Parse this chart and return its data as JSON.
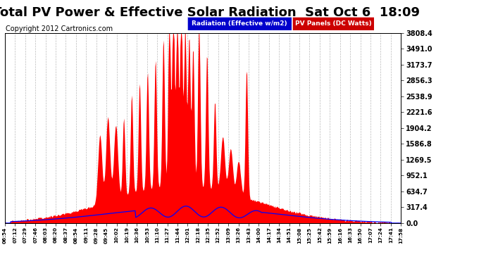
{
  "title": "Total PV Power & Effective Solar Radiation  Sat Oct 6  18:09",
  "copyright": "Copyright 2012 Cartronics.com",
  "yticks": [
    0.0,
    317.4,
    634.7,
    952.1,
    1269.5,
    1586.8,
    1904.2,
    2221.6,
    2538.9,
    2856.3,
    3173.7,
    3491.0,
    3808.4
  ],
  "xtick_labels": [
    "06:54",
    "07:12",
    "07:29",
    "07:46",
    "08:03",
    "08:20",
    "08:37",
    "08:54",
    "09:11",
    "09:28",
    "09:45",
    "10:02",
    "10:19",
    "10:36",
    "10:53",
    "11:10",
    "11:27",
    "11:44",
    "12:01",
    "12:18",
    "12:35",
    "12:52",
    "13:09",
    "13:26",
    "13:43",
    "14:00",
    "14:17",
    "14:34",
    "14:51",
    "15:08",
    "15:25",
    "15:42",
    "15:59",
    "16:16",
    "16:33",
    "16:50",
    "17:07",
    "17:24",
    "17:41",
    "17:58"
  ],
  "legend_labels": [
    "Radiation (Effective w/m2)",
    "PV Panels (DC Watts)"
  ],
  "legend_colors": [
    "#0000ff",
    "#ff0000"
  ],
  "legend_bg_blue": "#0000cc",
  "legend_bg_red": "#cc0000",
  "bg_color": "#ffffff",
  "plot_bg_color": "#ffffff",
  "grid_color": "#aaaaaa",
  "title_fontsize": 13,
  "copyright_fontsize": 7,
  "ymax": 3808.4
}
